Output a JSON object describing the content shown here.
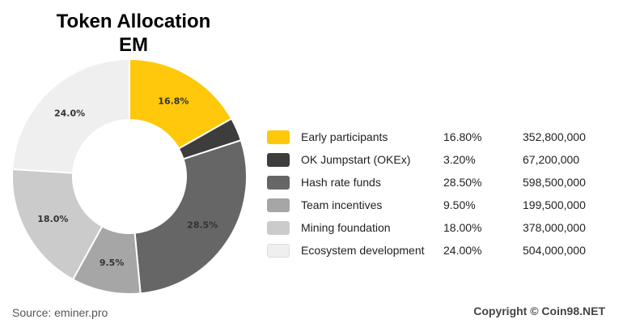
{
  "title_line1": "Token Allocation",
  "title_line2": "EM",
  "chart_data": {
    "type": "pie",
    "slices": [
      {
        "name": "Early participants",
        "value": 16.8,
        "percent_label": "16.80%",
        "amount": "352,800,000",
        "slice_label": "16.8%",
        "color": "#FFC80A"
      },
      {
        "name": "OK Jumpstart (OKEx)",
        "value": 3.2,
        "percent_label": "3.20%",
        "amount": "67,200,000",
        "slice_label": "",
        "color": "#3D3D3D"
      },
      {
        "name": "Hash rate funds",
        "value": 28.5,
        "percent_label": "28.50%",
        "amount": "598,500,000",
        "slice_label": "28.5%",
        "color": "#666666"
      },
      {
        "name": "Team incentives",
        "value": 9.5,
        "percent_label": "9.50%",
        "amount": "199,500,000",
        "slice_label": "9.5%",
        "color": "#A6A6A6"
      },
      {
        "name": "Mining foundation",
        "value": 18.0,
        "percent_label": "18.00%",
        "amount": "378,000,000",
        "slice_label": "18.0%",
        "color": "#CBCBCB"
      },
      {
        "name": "Ecosystem development",
        "value": 24.0,
        "percent_label": "24.00%",
        "amount": "504,000,000",
        "slice_label": "24.0%",
        "color": "#EFEFEF"
      }
    ],
    "donut": true,
    "legend_position": "right"
  },
  "source": "Source: eminer.pro",
  "copyright": "Copyright © Coin98.NET"
}
